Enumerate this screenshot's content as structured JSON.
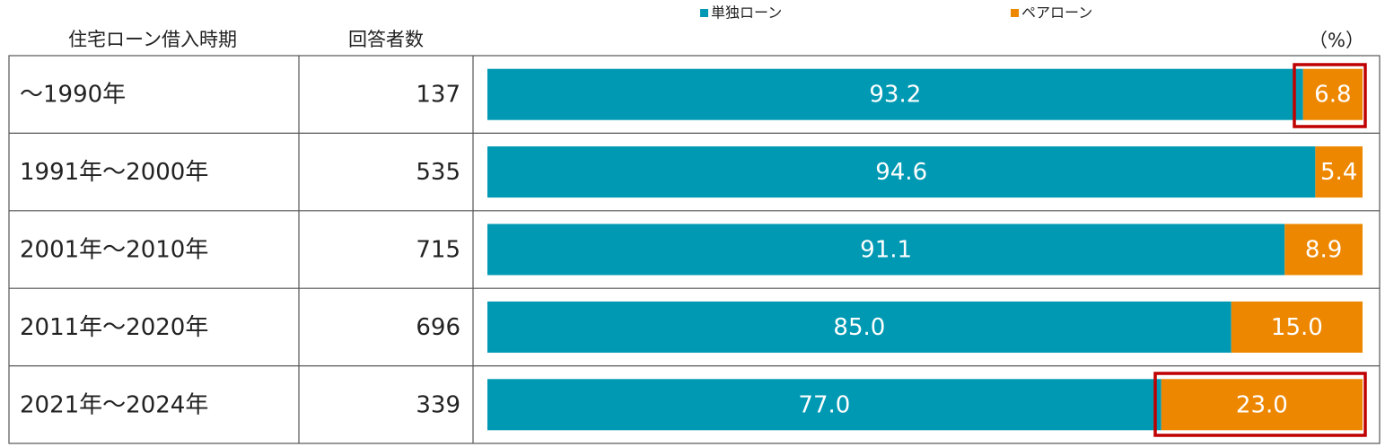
{
  "chart_data": {
    "type": "stacked-bar-horizontal",
    "category_header": "住宅ローン借入時期",
    "count_header": "回答者数",
    "unit_label": "（%）",
    "categories": [
      "～1990年",
      "1991年～2000年",
      "2001年～2010年",
      "2011年～2020年",
      "2021年～2024年"
    ],
    "counts": [
      137,
      535,
      715,
      696,
      339
    ],
    "xlim": [
      0,
      100
    ],
    "series": [
      {
        "name": "単独ローン",
        "color": "#0099b3",
        "values": [
          93.2,
          94.6,
          91.1,
          85.0,
          77.0
        ],
        "value_labels": [
          "93.2",
          "94.6",
          "91.1",
          "85.0",
          "77.0"
        ]
      },
      {
        "name": "ペアローン",
        "color": "#ee8700",
        "values": [
          6.8,
          5.4,
          8.9,
          15.0,
          23.0
        ],
        "value_labels": [
          "6.8",
          "5.4",
          "8.9",
          "15.0",
          "23.0"
        ]
      }
    ]
  }
}
